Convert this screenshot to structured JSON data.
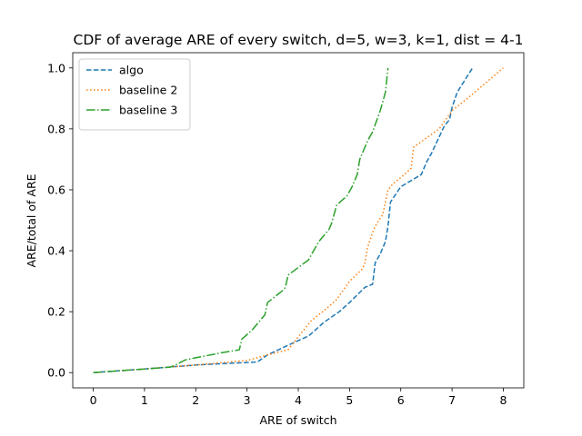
{
  "chart_data": {
    "type": "line",
    "title": "CDF of average ARE of every switch, d=5, w=3, k=1, dist = 4-1",
    "xlabel": "ARE of switch",
    "ylabel": "ARE/total of ARE",
    "xlim": [
      -0.4,
      8.4
    ],
    "ylim": [
      -0.05,
      1.05
    ],
    "xticks": [
      0,
      1,
      2,
      3,
      4,
      5,
      6,
      7,
      8
    ],
    "yticks": [
      0.0,
      0.2,
      0.4,
      0.6,
      0.8,
      1.0
    ],
    "xtick_labels": [
      "0",
      "1",
      "2",
      "3",
      "4",
      "5",
      "6",
      "7",
      "8"
    ],
    "ytick_labels": [
      "0.0",
      "0.2",
      "0.4",
      "0.6",
      "0.8",
      "1.0"
    ],
    "grid": false,
    "legend_position": "top-left",
    "series": [
      {
        "name": "algo",
        "color": "#1f77b4",
        "dash": "dashed",
        "x": [
          0,
          1,
          2,
          3.2,
          3.4,
          3.8,
          4.2,
          4.5,
          4.8,
          5.0,
          5.3,
          5.45,
          5.5,
          5.6,
          5.7,
          5.75,
          5.8,
          6.0,
          6.4,
          6.5,
          6.6,
          6.85,
          6.95,
          7.0,
          7.1,
          7.4
        ],
        "y": [
          0.0,
          0.012,
          0.025,
          0.035,
          0.058,
          0.09,
          0.12,
          0.165,
          0.2,
          0.23,
          0.28,
          0.29,
          0.36,
          0.39,
          0.43,
          0.48,
          0.56,
          0.61,
          0.65,
          0.69,
          0.72,
          0.81,
          0.83,
          0.87,
          0.92,
          1.0
        ]
      },
      {
        "name": "baseline 2",
        "color": "#ff7f0e",
        "dash": "dotted",
        "x": [
          0,
          1,
          2,
          3.0,
          3.4,
          3.8,
          4.25,
          4.55,
          4.75,
          5.0,
          5.25,
          5.3,
          5.35,
          5.45,
          5.5,
          5.65,
          5.7,
          5.75,
          5.85,
          6.0,
          6.2,
          6.25,
          6.5,
          6.75,
          7.0,
          7.3,
          8.0
        ],
        "y": [
          0.0,
          0.012,
          0.025,
          0.04,
          0.058,
          0.075,
          0.17,
          0.21,
          0.24,
          0.3,
          0.34,
          0.36,
          0.41,
          0.46,
          0.48,
          0.52,
          0.56,
          0.6,
          0.62,
          0.64,
          0.67,
          0.74,
          0.77,
          0.8,
          0.86,
          0.9,
          1.0
        ]
      },
      {
        "name": "baseline 3",
        "color": "#2ca02c",
        "dash": "dashdot",
        "x": [
          0,
          0.5,
          1.0,
          1.5,
          1.6,
          1.8,
          2.1,
          2.5,
          2.85,
          2.9,
          3.1,
          3.35,
          3.4,
          3.7,
          3.75,
          3.8,
          4.2,
          4.3,
          4.4,
          4.6,
          4.65,
          4.75,
          4.95,
          5.05,
          5.15,
          5.2,
          5.35,
          5.45,
          5.6,
          5.65,
          5.7,
          5.75
        ],
        "y": [
          0.0,
          0.006,
          0.012,
          0.018,
          0.025,
          0.042,
          0.052,
          0.065,
          0.075,
          0.11,
          0.14,
          0.19,
          0.23,
          0.27,
          0.28,
          0.32,
          0.37,
          0.4,
          0.43,
          0.47,
          0.49,
          0.55,
          0.58,
          0.61,
          0.65,
          0.7,
          0.76,
          0.79,
          0.86,
          0.89,
          0.92,
          1.0
        ]
      }
    ]
  }
}
